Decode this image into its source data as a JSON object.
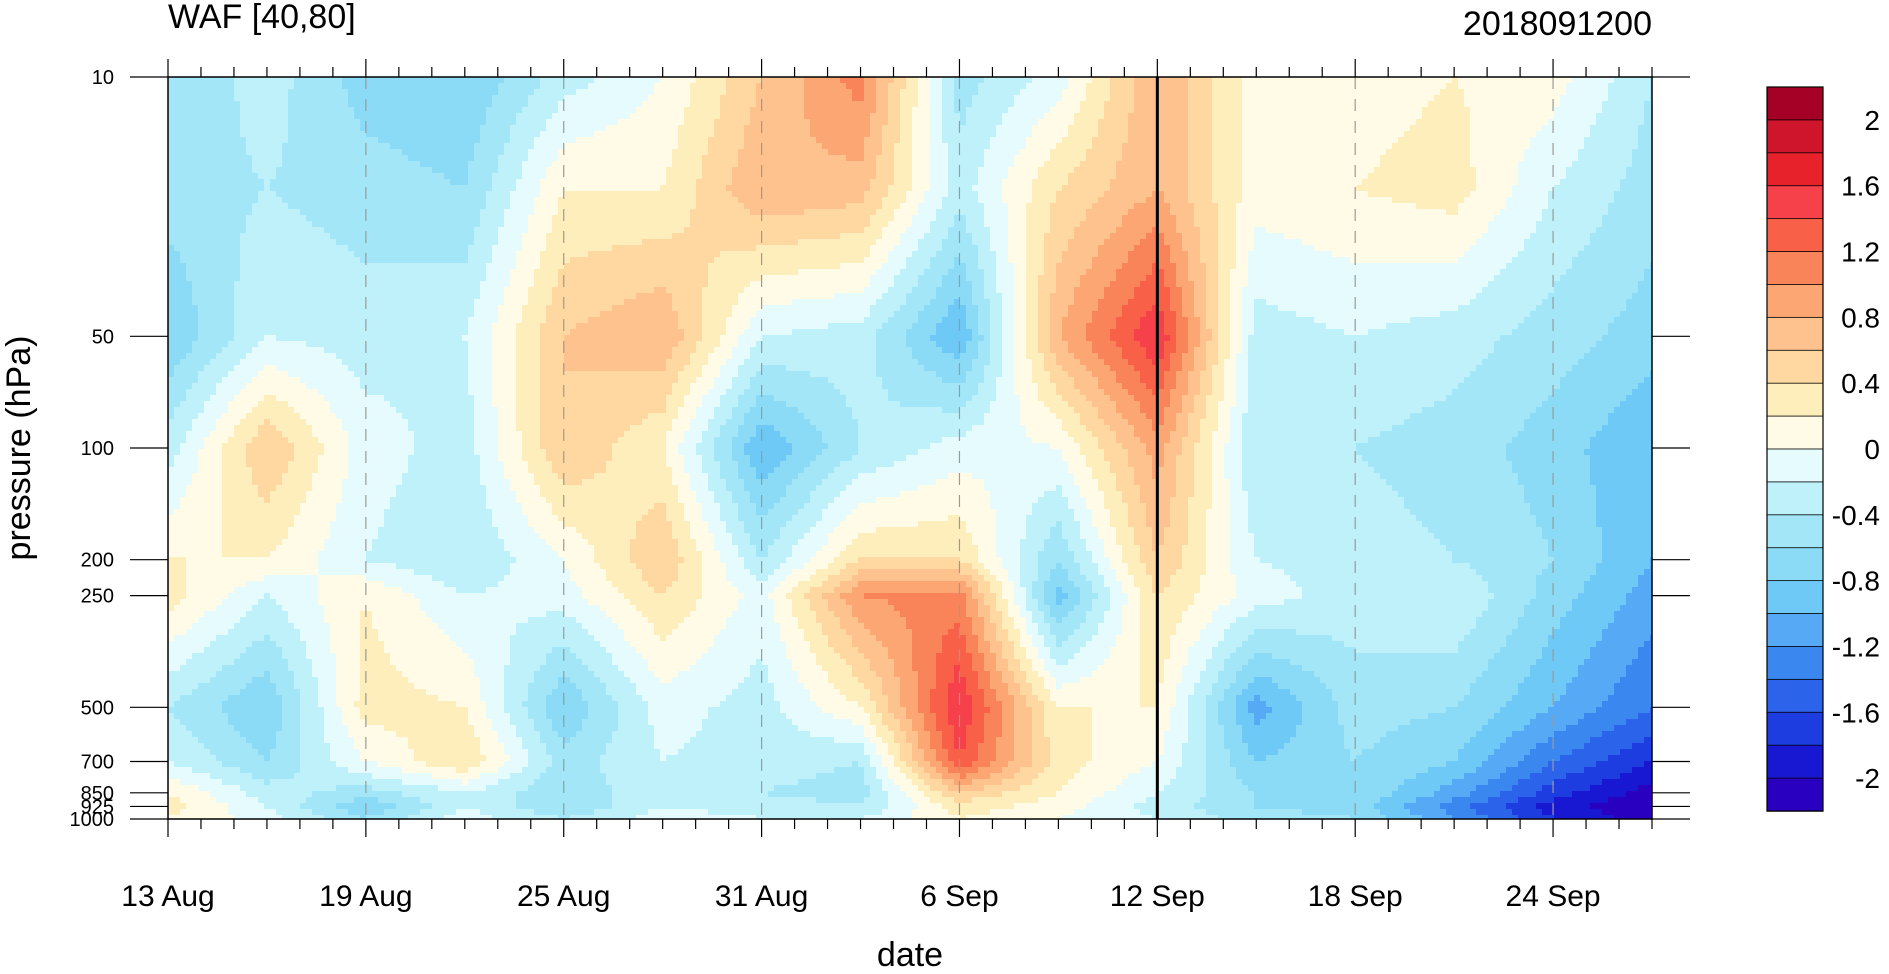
{
  "chart_data": {
    "type": "heatmap",
    "title": "WAF [40,80]",
    "subtitle": "2018091200",
    "xlabel": "date",
    "ylabel": "pressure (hPa)",
    "x_tick_labels": [
      "13 Aug",
      "19 Aug",
      "25 Aug",
      "31 Aug",
      "6 Sep",
      "12 Sep",
      "18 Sep",
      "24 Sep"
    ],
    "x_tick_days": [
      0,
      6,
      12,
      18,
      24,
      30,
      36,
      42
    ],
    "x_range_days": [
      0,
      45
    ],
    "y_tick_labels": [
      "10",
      "50",
      "100",
      "200",
      "250",
      "500",
      "700",
      "850",
      "925",
      "1000"
    ],
    "y_tick_values": [
      10,
      50,
      100,
      200,
      250,
      500,
      700,
      850,
      925,
      1000
    ],
    "y_scale": "log",
    "y_range": [
      1000,
      10
    ],
    "marker_line_day": 30,
    "colorbar": {
      "tick_labels": [
        "2",
        "1.6",
        "1.2",
        "0.8",
        "0.4",
        "0",
        "-0.4",
        "-0.8",
        "-1.2",
        "-1.6",
        "-2"
      ],
      "levels": [
        2.2,
        2.0,
        1.8,
        1.6,
        1.4,
        1.2,
        1.0,
        0.8,
        0.6,
        0.4,
        0.2,
        0.0,
        -0.2,
        -0.4,
        -0.6,
        -0.8,
        -1.0,
        -1.2,
        -1.4,
        -1.6,
        -1.8,
        -2.0,
        -2.2
      ],
      "colors": [
        "#a50026",
        "#cf152b",
        "#e8222b",
        "#f6404a",
        "#f86148",
        "#fa8459",
        "#fba673",
        "#fdc28e",
        "#fed8a0",
        "#fdeebc",
        "#fffbe6",
        "#e6fbfd",
        "#bff1fb",
        "#a2e6f8",
        "#8bdbf6",
        "#6ec9f6",
        "#55a9f5",
        "#3b87f0",
        "#2b63ea",
        "#1e3de0",
        "#1818d2",
        "#2a00c0"
      ]
    },
    "pressure_rows": [
      10,
      20,
      50,
      100,
      200,
      250,
      500,
      700,
      850,
      925,
      1000
    ],
    "day_columns": [
      0,
      3,
      6,
      9,
      12,
      15,
      18,
      21,
      24,
      27,
      30,
      33,
      36,
      39,
      42,
      45
    ],
    "values": [
      [
        -0.6,
        -0.3,
        -0.7,
        -0.8,
        -0.3,
        0.0,
        0.6,
        1.1,
        -0.5,
        -0.1,
        0.8,
        0.1,
        0.1,
        0.2,
        0.1,
        -0.4
      ],
      [
        -0.5,
        -0.4,
        -0.5,
        -0.6,
        0.2,
        0.2,
        0.8,
        0.7,
        -0.3,
        0.4,
        0.8,
        0.1,
        0.2,
        0.3,
        -0.2,
        -0.5
      ],
      [
        -0.8,
        -0.2,
        -0.3,
        -0.2,
        0.6,
        0.8,
        -0.2,
        -0.3,
        -1.0,
        0.8,
        1.6,
        -0.3,
        -0.2,
        -0.3,
        -0.5,
        -0.7
      ],
      [
        -0.3,
        0.6,
        -0.1,
        -0.3,
        0.6,
        0.2,
        -1.0,
        -0.4,
        -0.1,
        0.0,
        0.9,
        -0.4,
        -0.4,
        -0.5,
        -0.7,
        -1.0
      ],
      [
        0.2,
        0.2,
        -0.2,
        -0.4,
        0.0,
        0.6,
        -0.4,
        0.4,
        0.4,
        -0.6,
        0.6,
        -0.2,
        -0.3,
        -0.4,
        -0.6,
        -1.0
      ],
      [
        0.3,
        -0.2,
        0.2,
        -0.2,
        -0.1,
        0.4,
        -0.1,
        1.0,
        1.1,
        -0.9,
        0.4,
        -0.1,
        -0.3,
        -0.2,
        -0.7,
        -1.1
      ],
      [
        -0.4,
        -0.8,
        0.3,
        0.2,
        -0.8,
        -0.1,
        -0.3,
        0.2,
        1.6,
        0.2,
        0.2,
        -1.1,
        -0.5,
        -0.6,
        -1.0,
        -1.4
      ],
      [
        -0.2,
        -0.6,
        0.0,
        0.4,
        -0.5,
        -0.2,
        -0.3,
        -0.4,
        1.4,
        0.3,
        0.0,
        -0.8,
        -0.6,
        -0.8,
        -1.4,
        -1.8
      ],
      [
        0.2,
        -0.3,
        -0.5,
        -0.2,
        -0.6,
        -0.2,
        -0.4,
        -0.5,
        0.6,
        0.2,
        -0.2,
        -0.6,
        -0.6,
        -1.1,
        -1.7,
        -2.1
      ],
      [
        0.3,
        -0.2,
        -0.8,
        -0.2,
        -0.6,
        -0.2,
        -0.3,
        -0.4,
        0.3,
        0.1,
        -0.3,
        -0.6,
        -0.7,
        -1.3,
        -1.9,
        -2.2
      ],
      [
        0.2,
        -0.1,
        -0.6,
        -0.1,
        -0.4,
        -0.1,
        -0.2,
        -0.2,
        0.2,
        0.0,
        -0.2,
        -0.5,
        -0.6,
        -1.2,
        -1.8,
        -2.1
      ]
    ]
  }
}
